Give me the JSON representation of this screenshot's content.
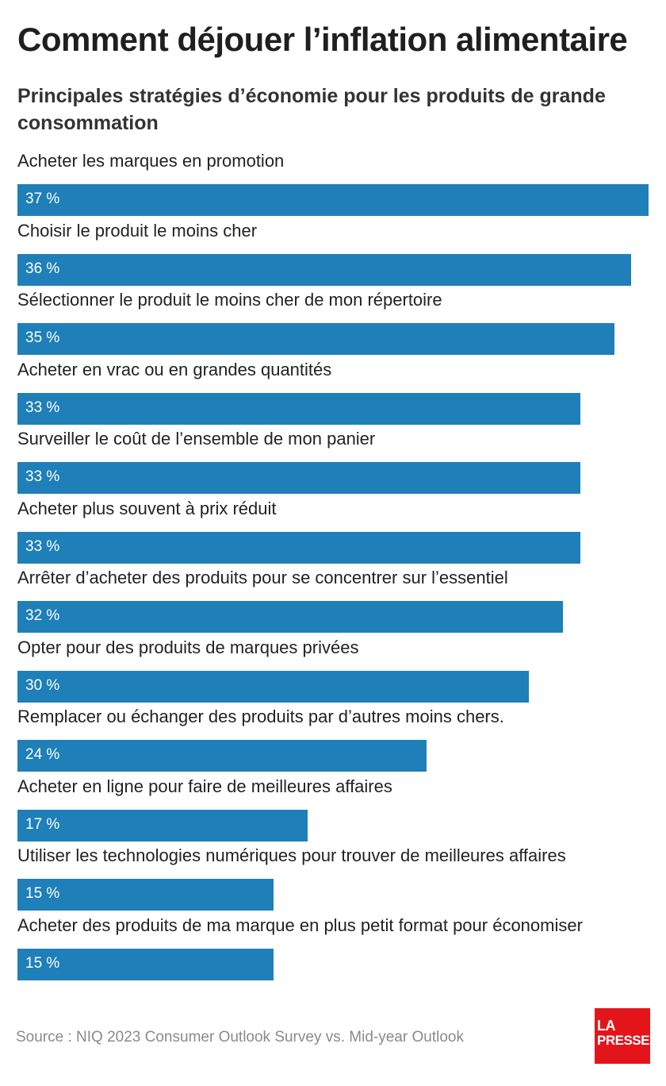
{
  "header": {
    "title": "Comment déjouer l’inflation alimentaire",
    "subtitle": "Principales stratégies d’économie pour les produits de grande consommation"
  },
  "chart_data": {
    "type": "bar",
    "orientation": "horizontal",
    "title": "Comment déjouer l’inflation alimentaire",
    "subtitle": "Principales stratégies d’économie pour les produits de grande consommation",
    "categories": [
      "Acheter les marques en promotion",
      "Choisir le produit le moins cher",
      "Sélectionner le produit le moins cher de mon répertoire",
      "Acheter en vrac ou en grandes quantités",
      "Surveiller le coût de l’ensemble de mon panier",
      "Acheter plus souvent à prix réduit",
      "Arrêter d’acheter des produits pour se concentrer sur l’essentiel",
      "Opter pour des produits de marques privées",
      "Remplacer ou échanger des produits par d’autres moins chers.",
      "Acheter en ligne pour faire de meilleures affaires",
      "Utiliser les technologies numériques pour trouver de meilleures affaires",
      "Acheter des produits de ma marque en plus petit format pour économiser"
    ],
    "values": [
      37,
      36,
      35,
      33,
      33,
      33,
      32,
      30,
      24,
      17,
      15,
      15
    ],
    "value_labels": [
      "37 %",
      "36 %",
      "35 %",
      "33 %",
      "33 %",
      "33 %",
      "32 %",
      "30 %",
      "24 %",
      "17 %",
      "15 %",
      "15 %"
    ],
    "unit": "%",
    "xlim": [
      0,
      37
    ],
    "grid": false,
    "legend": "none",
    "bar_color": "#1f7fb8",
    "data_label_color": "#ffffff"
  },
  "footer": {
    "source": "Source : NIQ 2023 Consumer Outlook Survey vs. Mid-year Outlook",
    "logo_line1": "LA",
    "logo_line2": "PRESSE",
    "logo_color": "#e3151b"
  }
}
